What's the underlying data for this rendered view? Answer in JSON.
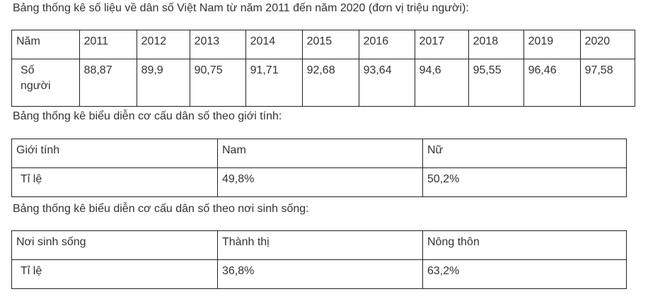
{
  "sections": [
    {
      "caption": "Bảng thống kê số liệu về dân số Việt Nam từ năm 2011 đến năm 2020 (đơn vị triệu người):",
      "rows": [
        [
          "Năm",
          "2011",
          "2012",
          "2013",
          "2014",
          "2015",
          "2016",
          "2017",
          "2018",
          "2019",
          "2020"
        ],
        [
          "Số người",
          "88,87",
          "89,9",
          "90,75",
          "91,71",
          "92,68",
          "93,64",
          "94,6",
          "95,55",
          "96,46",
          "97,58"
        ]
      ]
    },
    {
      "caption": "Bảng thống kê biểu diễn cơ cấu dân số theo giới tính:",
      "rows": [
        [
          "Giới tính",
          "Nam",
          "Nữ"
        ],
        [
          "Tỉ lệ",
          "49,8%",
          "50,2%"
        ]
      ]
    },
    {
      "caption": "Bảng thống kê biểu diễn cơ cấu dân số theo nơi sinh sống:",
      "rows": [
        [
          "Nơi sinh sống",
          "Thành thị",
          "Nông thôn"
        ],
        [
          "Tỉ lệ",
          "36,8%",
          "63,2%"
        ]
      ]
    }
  ]
}
